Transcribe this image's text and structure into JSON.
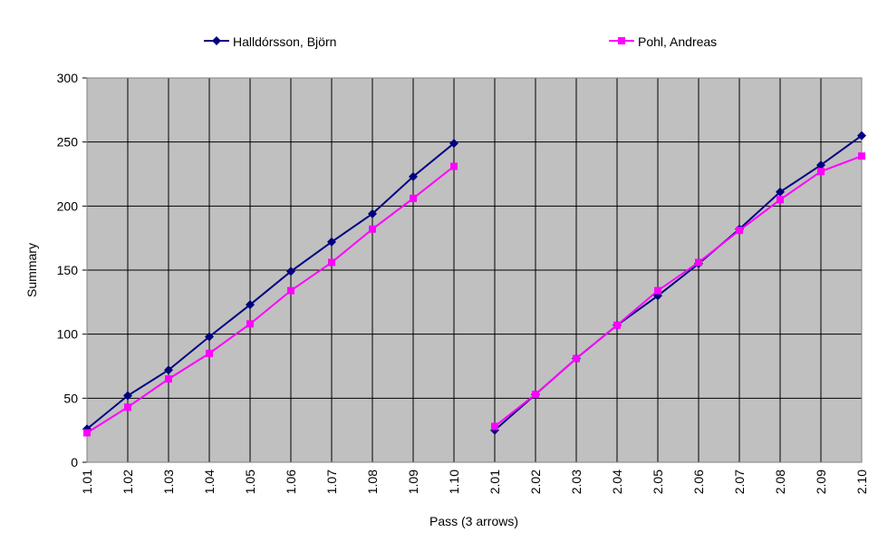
{
  "chart_data": {
    "type": "line",
    "x_label": "Pass (3 arrows)",
    "y_label": "Summary",
    "categories": [
      "1.01",
      "1.02",
      "1.03",
      "1.04",
      "1.05",
      "1.06",
      "1.07",
      "1.08",
      "1.09",
      "1.10",
      "2.01",
      "2.02",
      "2.03",
      "2.04",
      "2.05",
      "2.06",
      "2.07",
      "2.08",
      "2.09",
      "2.10"
    ],
    "series": [
      {
        "name": "Halldórsson, Björn",
        "color": "#000080",
        "marker": "diamond",
        "values": [
          26,
          52,
          72,
          98,
          123,
          149,
          172,
          194,
          223,
          249,
          25,
          53,
          81,
          107,
          130,
          155,
          182,
          211,
          232,
          255
        ]
      },
      {
        "name": "Pohl, Andreas",
        "color": "#ff00ff",
        "marker": "square",
        "values": [
          23,
          43,
          65,
          85,
          108,
          134,
          156,
          182,
          206,
          231,
          28,
          53,
          81,
          107,
          134,
          156,
          181,
          205,
          227,
          239
        ]
      }
    ],
    "ylim": [
      0,
      300
    ],
    "yticks": [
      0,
      50,
      100,
      150,
      200,
      250,
      300
    ],
    "grid": true,
    "legend": "top"
  }
}
